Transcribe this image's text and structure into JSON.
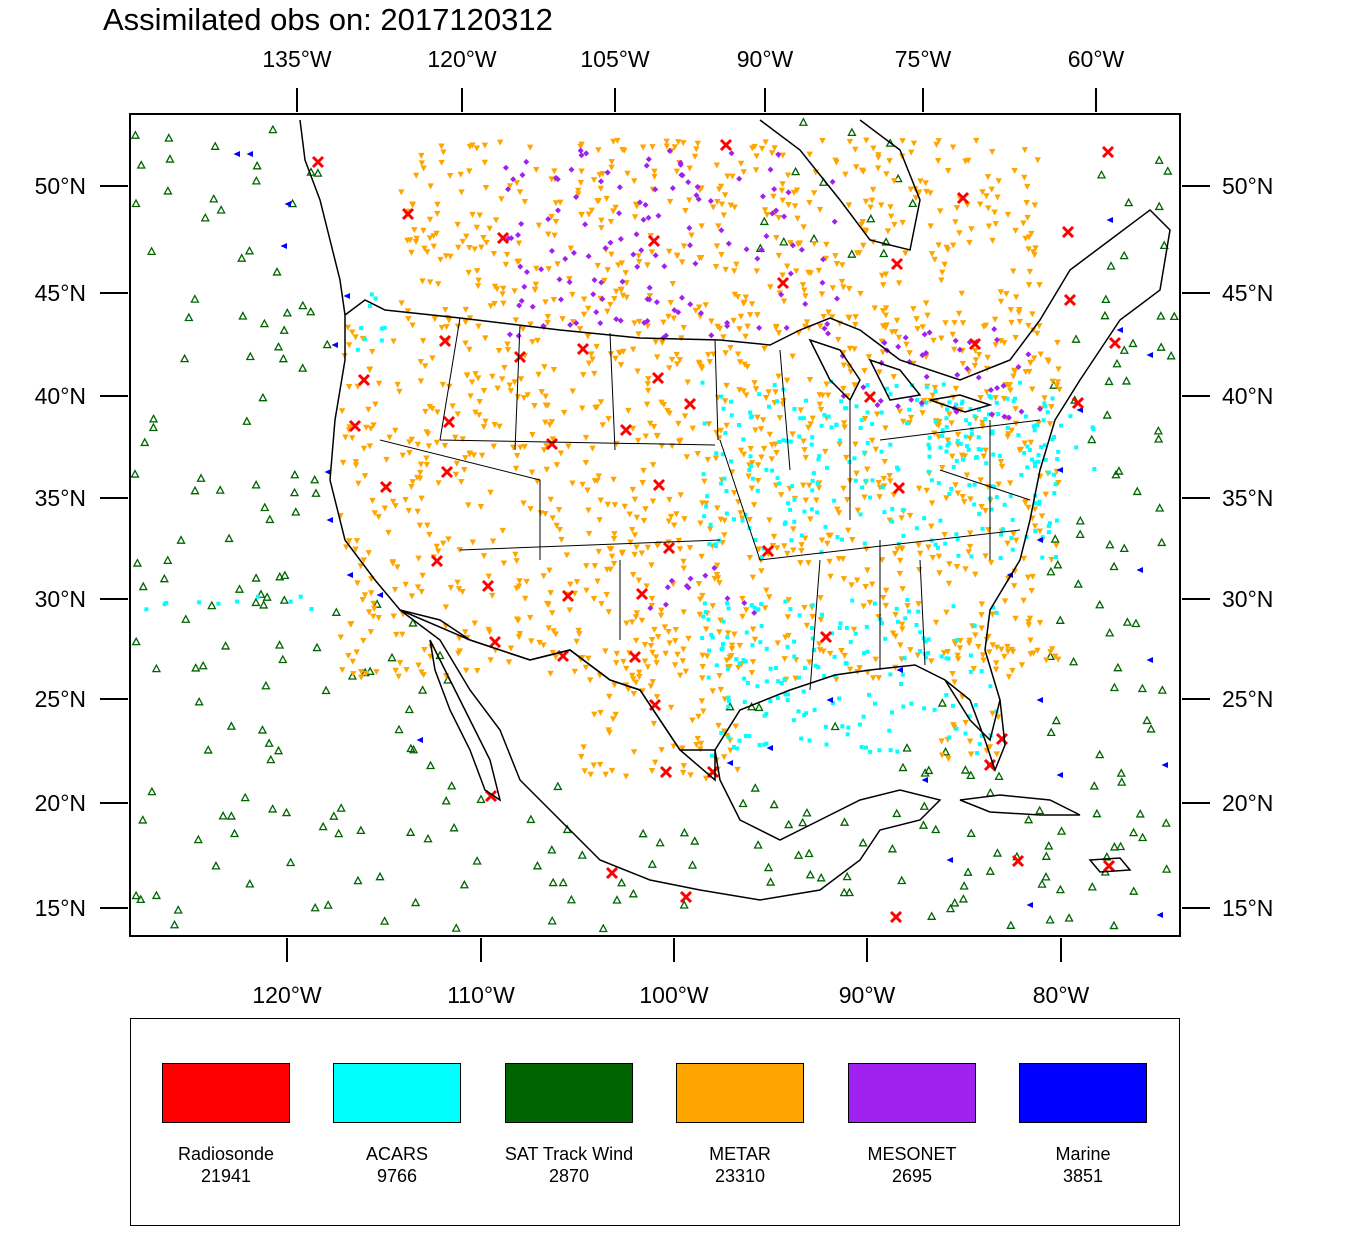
{
  "title": "Assimilated obs on: 2017120312",
  "top_axis_ticks": [
    "135°W",
    "120°W",
    "105°W",
    "90°W",
    "75°W",
    "60°W"
  ],
  "bottom_axis_ticks": [
    "120°W",
    "110°W",
    "100°W",
    "90°W",
    "80°W"
  ],
  "lat_ticks": [
    "50°N",
    "45°N",
    "40°N",
    "35°N",
    "30°N",
    "25°N",
    "20°N",
    "15°N"
  ],
  "legend": [
    {
      "name": "Radiosonde",
      "count": "21941",
      "color": "#ff0000"
    },
    {
      "name": "ACARS",
      "count": "9766",
      "color": "#00ffff"
    },
    {
      "name": "SAT Track Wind",
      "count": "2870",
      "color": "#006400"
    },
    {
      "name": "METAR",
      "count": "23310",
      "color": "#ffa500"
    },
    {
      "name": "MESONET",
      "count": "2695",
      "color": "#a020f0"
    },
    {
      "name": "Marine",
      "count": "3851",
      "color": "#0000ff"
    }
  ],
  "marker_icons": {
    "Radiosonde": "x-icon",
    "ACARS": "dot-icon",
    "SAT Track Wind": "open-triangle-icon",
    "METAR": "down-triangle-icon",
    "MESONET": "diamond-icon",
    "Marine": "left-triangle-icon"
  }
}
